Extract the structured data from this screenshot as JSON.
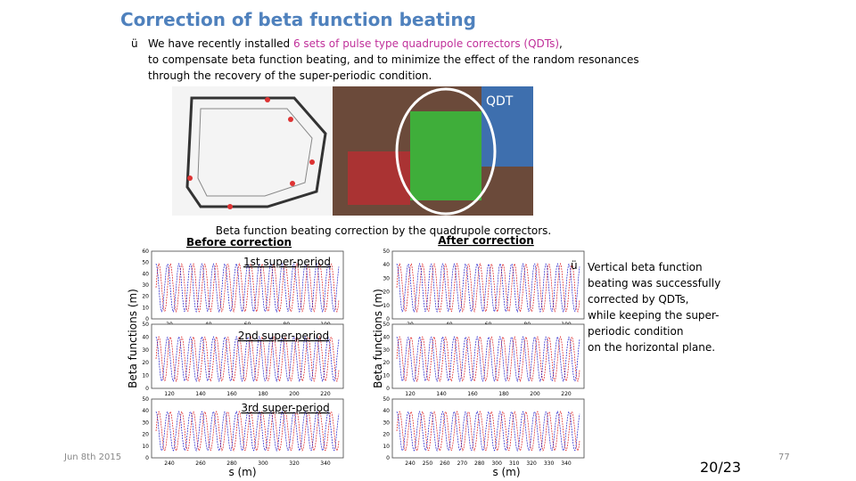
{
  "header": {
    "title": "Correction of beta function beating"
  },
  "bullet": {
    "mark": "ü",
    "parts": [
      "We have recently installed ",
      "6 sets of pulse type quadrupole correctors (QDTs)",
      ",",
      "to compensate beta function beating, and to minimize the effect of the random resonances",
      "through the recovery of the super-periodic condition."
    ]
  },
  "photo_label": "QDT",
  "caption": "Beta function beating correction by the quadrupole correctors.",
  "before_label": "Before correction",
  "after_label": "After correction",
  "periods": [
    "1st super-period",
    "2nd super-period",
    "3rd super-period"
  ],
  "y_axis_labels": [
    "Beta functions (m)",
    "Beta functions (m)"
  ],
  "x_axis_labels": [
    "s (m)",
    "s (m)"
  ],
  "plots": [
    {
      "yticks": [
        "60",
        "50",
        "40",
        "30",
        "20",
        "10",
        "0"
      ],
      "xticks": [
        "20",
        "40",
        "60",
        "80",
        "100"
      ]
    },
    {
      "yticks": [
        "50",
        "40",
        "30",
        "20",
        "10",
        "0"
      ],
      "xticks": [
        "120",
        "140",
        "160",
        "180",
        "200",
        "220"
      ]
    },
    {
      "yticks": [
        "50",
        "40",
        "30",
        "20",
        "10",
        "0"
      ],
      "xticks": [
        "240",
        "260",
        "280",
        "300",
        "320",
        "340"
      ]
    },
    {
      "yticks": [
        "50",
        "40",
        "30",
        "20",
        "10",
        "0"
      ],
      "xticks": [
        "20",
        "40",
        "60",
        "80",
        "100"
      ]
    },
    {
      "yticks": [
        "50",
        "40",
        "30",
        "20",
        "10",
        "0"
      ],
      "xticks": [
        "120",
        "140",
        "160",
        "180",
        "200",
        "220"
      ]
    },
    {
      "yticks": [
        "50",
        "40",
        "30",
        "20",
        "10",
        "0"
      ],
      "xticks": [
        "240",
        "250",
        "260",
        "270",
        "280",
        "300",
        "310",
        "320",
        "330",
        "340"
      ]
    }
  ],
  "side_note": {
    "mark": "ü",
    "lines": [
      "Vertical beta function",
      "beating was successfully",
      "corrected by QDTs,",
      "while keeping the super-",
      "periodic condition",
      "on the horizontal plane."
    ]
  },
  "footer": {
    "date": "Jun 8th 2015",
    "page": "20/23",
    "number": "77"
  }
}
